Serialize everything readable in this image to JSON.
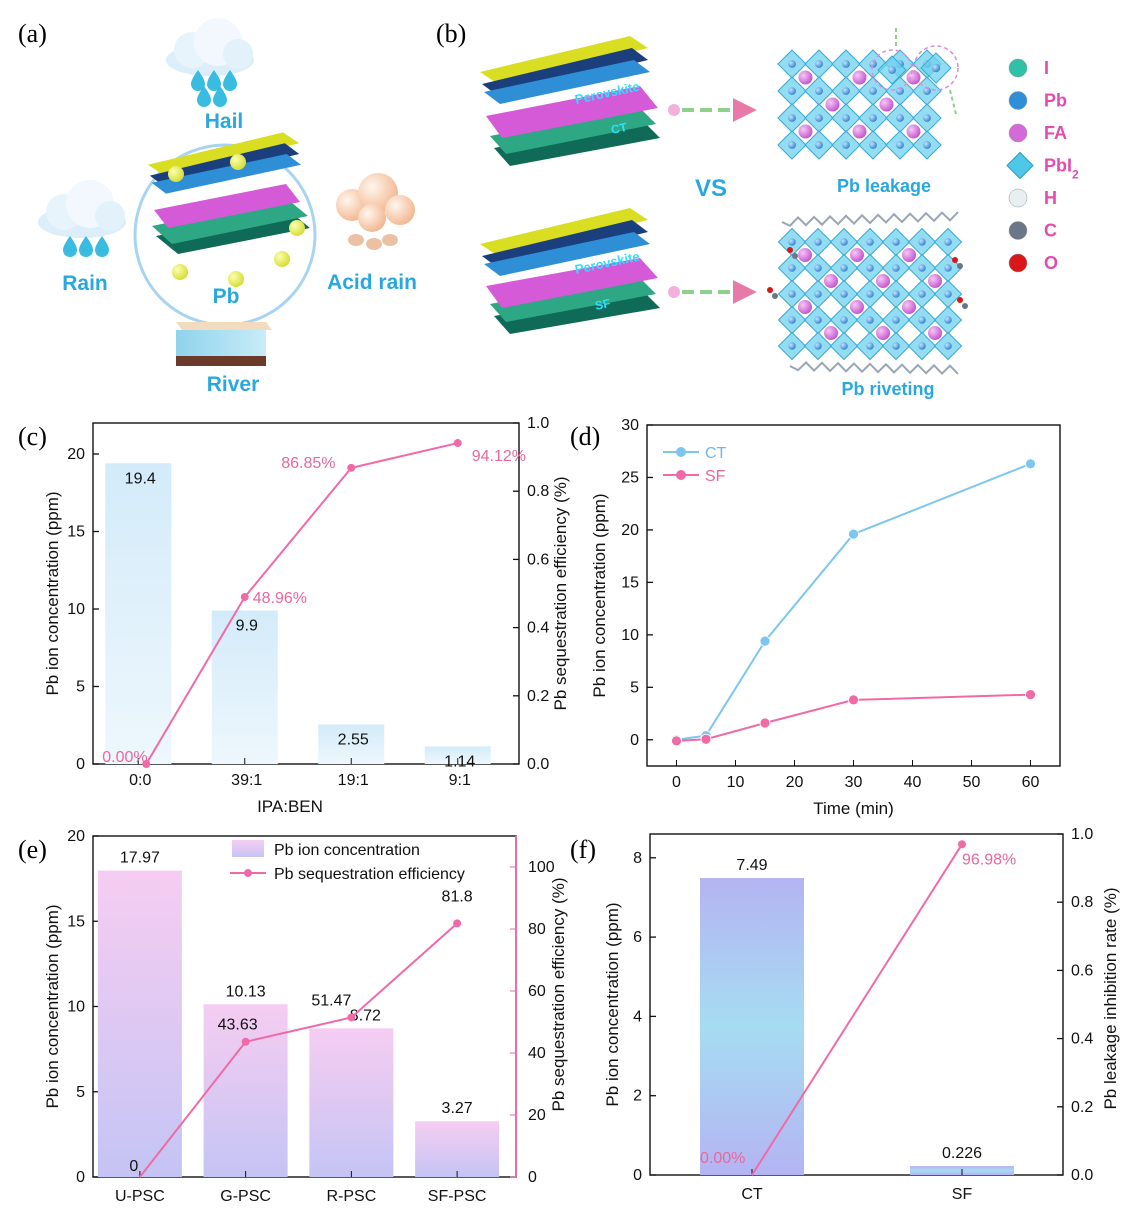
{
  "panels": {
    "a": {
      "letter": "(a)",
      "labels": {
        "hail": "Hail",
        "rain": "Rain",
        "acid_rain": "Acid rain",
        "pb": "Pb",
        "river": "River"
      }
    },
    "b": {
      "letter": "(b)",
      "layer_perovskite": "Perovskite",
      "layer_ct": "CT",
      "layer_sf": "SF",
      "vs": "VS",
      "top_caption": "Pb leakage",
      "bottom_caption": "Pb riveting",
      "legend": [
        {
          "label": "I",
          "color": "#2fc0a8"
        },
        {
          "label": "Pb",
          "color": "#2f8fd6"
        },
        {
          "label": "FA",
          "color": "#d46ad8"
        },
        {
          "label": "PbI",
          "sub": "2",
          "color": "#4fc8e8"
        },
        {
          "label": "H",
          "color": "#e8eef2"
        },
        {
          "label": "C",
          "color": "#6a7788"
        },
        {
          "label": "O",
          "color": "#d81818"
        }
      ]
    },
    "c": {
      "letter": "(c)"
    },
    "d": {
      "letter": "(d)"
    },
    "e": {
      "letter": "(e)"
    },
    "f": {
      "letter": "(f)"
    }
  },
  "colors": {
    "pink": "#e8689c",
    "line_pink": "#f06aa8",
    "blue": "#7cc6ef",
    "bar_light_blue": "#d6ecf8",
    "bar_pink": "#f4c8f0",
    "bar_purple": "#b8b8f2"
  },
  "chart_data": [
    {
      "id": "c",
      "type": "bar",
      "categories": [
        "0:0",
        "39:1",
        "19:1",
        "9:1"
      ],
      "xlabel": "IPA:BEN",
      "ylabel": "Pb ion concentration (ppm)",
      "ylim": [
        0,
        22
      ],
      "yticks": [
        0,
        5,
        10,
        15,
        20
      ],
      "values": [
        19.4,
        9.9,
        2.55,
        1.14
      ],
      "value_labels": [
        "19.4",
        "9.9",
        "2.55",
        "1.14"
      ],
      "secondary": {
        "type": "line",
        "ylabel": "Pb  sequestration efficiency  (%)",
        "ylim": [
          0,
          1.0
        ],
        "yticks": [
          "0.0",
          "0.2",
          "0.4",
          "0.6",
          "0.8",
          "1.0"
        ],
        "values": [
          0.0,
          0.4896,
          0.8685,
          0.9412
        ],
        "value_labels": [
          "0.00%",
          "48.96%",
          "86.85%",
          "94.12%"
        ]
      }
    },
    {
      "id": "d",
      "type": "line",
      "xlabel": "Time (min)",
      "ylabel": "Pb ion concentration (ppm)",
      "xlim": [
        -5,
        65
      ],
      "ylim": [
        -2.5,
        30
      ],
      "xticks": [
        0,
        10,
        20,
        30,
        40,
        50,
        60
      ],
      "yticks": [
        0,
        5,
        10,
        15,
        20,
        25,
        30
      ],
      "legend_position": "top-left",
      "series": [
        {
          "name": "CT",
          "x": [
            0,
            5,
            15,
            30,
            60
          ],
          "values": [
            0,
            0.4,
            9.4,
            19.6,
            26.3
          ]
        },
        {
          "name": "SF",
          "x": [
            0,
            5,
            15,
            30,
            60
          ],
          "values": [
            -0.1,
            0.05,
            1.6,
            3.8,
            4.3
          ]
        }
      ]
    },
    {
      "id": "e",
      "type": "bar",
      "categories": [
        "U-PSC",
        "G-PSC",
        "R-PSC",
        "SF-PSC"
      ],
      "ylabel": "Pb ion concentration (ppm)",
      "ylim": [
        0,
        20
      ],
      "yticks": [
        0,
        5,
        10,
        15,
        20
      ],
      "values": [
        17.97,
        10.13,
        8.72,
        3.27
      ],
      "value_labels": [
        "17.97",
        "10.13",
        "8.72",
        "3.27"
      ],
      "legend_position": "top",
      "legend": [
        "Pb ion concentration",
        "Pb sequestration efficiency"
      ],
      "secondary": {
        "type": "line",
        "ylabel": "Pb sequestration efficiency (%)",
        "ylim": [
          0,
          110
        ],
        "yticks": [
          0,
          20,
          40,
          60,
          80,
          100
        ],
        "values": [
          0,
          43.63,
          51.47,
          81.8
        ],
        "value_labels": [
          "0",
          "43.63",
          "51.47",
          "81.8"
        ]
      }
    },
    {
      "id": "f",
      "type": "bar",
      "categories": [
        "CT",
        "SF"
      ],
      "ylabel": "Pb ion concentration (ppm)",
      "ylim": [
        0,
        8.6
      ],
      "yticks": [
        0,
        2,
        4,
        6,
        8
      ],
      "values": [
        7.49,
        0.226
      ],
      "value_labels": [
        "7.49",
        "0.226"
      ],
      "secondary": {
        "type": "line",
        "ylabel": "Pb leakage inhibition rate (%)",
        "ylim": [
          0,
          1.0
        ],
        "yticks": [
          "0.0",
          "0.2",
          "0.4",
          "0.6",
          "0.8",
          "1.0"
        ],
        "values": [
          0.0,
          0.9698
        ],
        "value_labels": [
          "0.00%",
          "96.98%"
        ]
      }
    }
  ]
}
